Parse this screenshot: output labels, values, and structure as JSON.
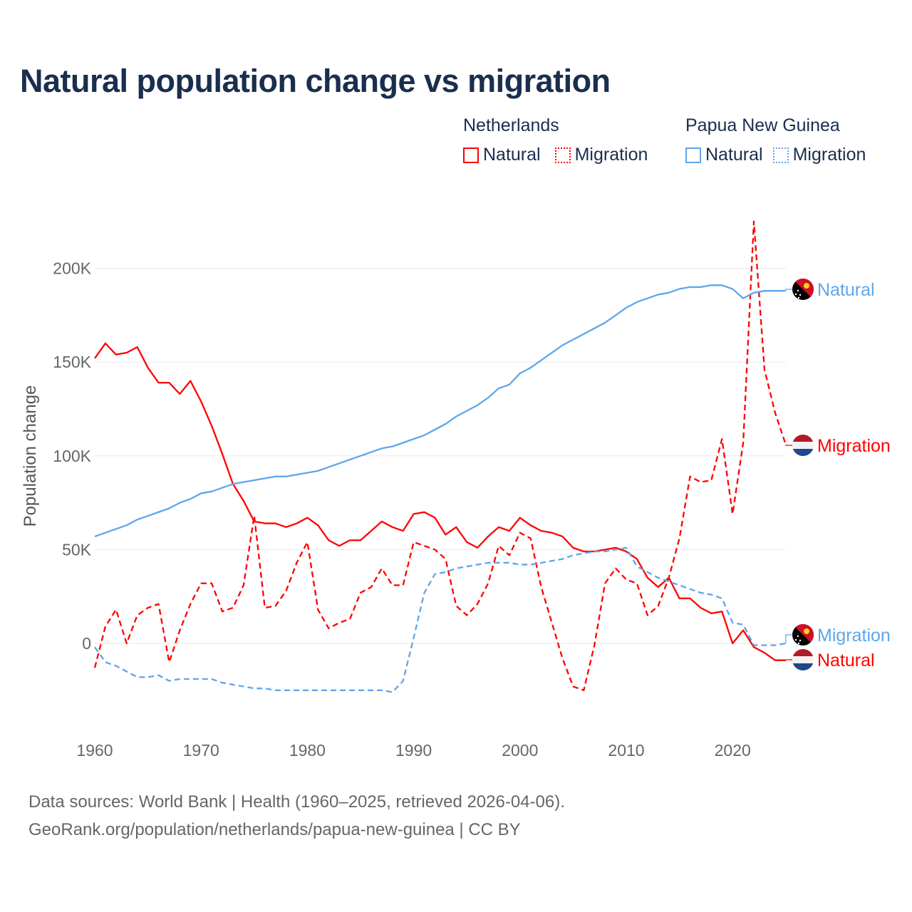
{
  "chart_data": {
    "type": "line",
    "title": "Natural population change vs migration",
    "ylabel": "Population change",
    "xlabel": "",
    "xlim": [
      1960,
      2025
    ],
    "ylim": [
      -40000,
      230000
    ],
    "x_ticks": [
      1960,
      1970,
      1980,
      1990,
      2000,
      2010,
      2020
    ],
    "x_tick_labels": [
      "1960",
      "1970",
      "1980",
      "1990",
      "2000",
      "2010",
      "2020"
    ],
    "y_ticks": [
      0,
      50000,
      100000,
      150000,
      200000
    ],
    "y_tick_labels": [
      "0",
      "50K",
      "100K",
      "150K",
      "200K"
    ],
    "grid": true,
    "legend": {
      "placement": "top-right",
      "groups": [
        {
          "country": "Netherlands",
          "items": [
            "Natural",
            "Migration"
          ]
        },
        {
          "country": "Papua New Guinea",
          "items": [
            "Natural",
            "Migration"
          ]
        }
      ]
    },
    "x": [
      1960,
      1961,
      1962,
      1963,
      1964,
      1965,
      1966,
      1967,
      1968,
      1969,
      1970,
      1971,
      1972,
      1973,
      1974,
      1975,
      1976,
      1977,
      1978,
      1979,
      1980,
      1981,
      1982,
      1983,
      1984,
      1985,
      1986,
      1987,
      1988,
      1989,
      1990,
      1991,
      1992,
      1993,
      1994,
      1995,
      1996,
      1997,
      1998,
      1999,
      2000,
      2001,
      2002,
      2003,
      2004,
      2005,
      2006,
      2007,
      2008,
      2009,
      2010,
      2011,
      2012,
      2013,
      2014,
      2015,
      2016,
      2017,
      2018,
      2019,
      2020,
      2021,
      2022,
      2023,
      2024,
      2025
    ],
    "series": [
      {
        "name": "Natural",
        "country": "Netherlands",
        "color": "#ff0000",
        "dash": "solid",
        "end_label": "Natural",
        "values": [
          152,
          160,
          154,
          155,
          158,
          147,
          139,
          139,
          133,
          140,
          129,
          116,
          101,
          85,
          76,
          65,
          64,
          64,
          62,
          64,
          67,
          63,
          55,
          52,
          55,
          55,
          60,
          65,
          62,
          60,
          69,
          70,
          67,
          58,
          62,
          54,
          51,
          57,
          62,
          60,
          67,
          63,
          60,
          59,
          57,
          51,
          49,
          49,
          50,
          51,
          49,
          45,
          35,
          30,
          35,
          24,
          24,
          19,
          16,
          17,
          0,
          7,
          -2,
          -5,
          -9,
          -9
        ]
      },
      {
        "name": "Migration",
        "country": "Netherlands",
        "color": "#ff0000",
        "dash": "dashed",
        "end_label": "Migration",
        "values": [
          -13,
          9,
          18,
          0,
          15,
          19,
          21,
          -10,
          7,
          21,
          32,
          32,
          17,
          19,
          31,
          68,
          19,
          20,
          28,
          43,
          54,
          18,
          8,
          11,
          13,
          27,
          30,
          40,
          31,
          31,
          54,
          52,
          50,
          45,
          20,
          15,
          21,
          32,
          52,
          47,
          59,
          56,
          30,
          11,
          -8,
          -23,
          -25,
          -1,
          32,
          40,
          34,
          32,
          15,
          20,
          35,
          56,
          89,
          86,
          87,
          109,
          69,
          107,
          225,
          146,
          123,
          106
        ]
      },
      {
        "name": "Natural",
        "country": "Papua New Guinea",
        "color": "#5ea6ea",
        "dash": "solid",
        "end_label": "Natural",
        "values": [
          57,
          59,
          61,
          63,
          66,
          68,
          70,
          72,
          75,
          77,
          80,
          81,
          83,
          85,
          86,
          87,
          88,
          89,
          89,
          90,
          91,
          92,
          94,
          96,
          98,
          100,
          102,
          104,
          105,
          107,
          109,
          111,
          114,
          117,
          121,
          124,
          127,
          131,
          136,
          138,
          144,
          147,
          151,
          155,
          159,
          162,
          165,
          168,
          171,
          175,
          179,
          182,
          184,
          186,
          187,
          189,
          190,
          190,
          191,
          191,
          189,
          184,
          187,
          188,
          188,
          188
        ]
      },
      {
        "name": "Migration",
        "country": "Papua New Guinea",
        "color": "#5ea6ea",
        "dash": "dashed",
        "end_label": "Migration",
        "values": [
          -2,
          -10,
          -12,
          -15,
          -18,
          -18,
          -17,
          -20,
          -19,
          -19,
          -19,
          -19,
          -21,
          -22,
          -23,
          -24,
          -24,
          -25,
          -25,
          -25,
          -25,
          -25,
          -25,
          -25,
          -25,
          -25,
          -25,
          -25,
          -26,
          -20,
          3,
          27,
          37,
          38,
          40,
          41,
          42,
          43,
          43,
          43,
          42,
          42,
          43,
          44,
          45,
          47,
          48,
          49,
          49,
          50,
          51,
          41,
          38,
          35,
          33,
          31,
          29,
          27,
          26,
          24,
          11,
          10,
          -1,
          -1,
          -1,
          0
        ]
      }
    ],
    "value_unit": "thousands"
  },
  "legend": {
    "nl": {
      "title": "Netherlands",
      "natural": "Natural",
      "migration": "Migration",
      "color": "#ff0000"
    },
    "png": {
      "title": "Papua New Guinea",
      "natural": "Natural",
      "migration": "Migration",
      "color": "#5ea6ea"
    }
  },
  "footer": {
    "line1": "Data sources: World Bank | Health (1960–2025, retrieved 2026-04-06).",
    "line2": "GeoRank.org/population/netherlands/papua-new-guinea | CC BY"
  }
}
